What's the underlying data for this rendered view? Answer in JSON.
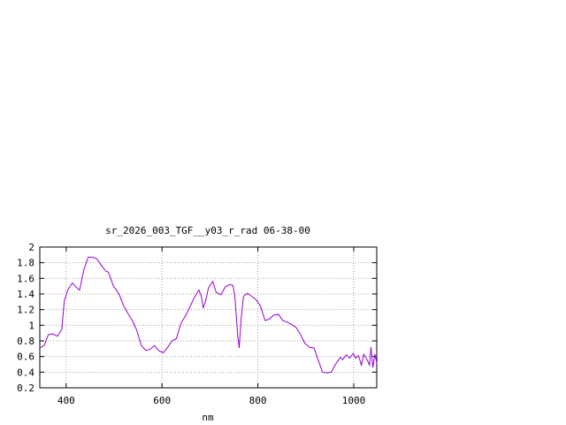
{
  "chart_data": {
    "type": "line",
    "title": "sr_2026_003_TGF__y03_r_rad 06-38-00",
    "x_label": "nm",
    "x": [
      345,
      354,
      363,
      372,
      382,
      391,
      396,
      404,
      413,
      422,
      428,
      437,
      446,
      455,
      464,
      474,
      483,
      488,
      498,
      511,
      520,
      529,
      538,
      547,
      557,
      566,
      575,
      584,
      594,
      603,
      612,
      621,
      630,
      640,
      649,
      658,
      667,
      677,
      682,
      686,
      691,
      697,
      706,
      713,
      723,
      732,
      741,
      748,
      752,
      758,
      761,
      765,
      770,
      778,
      787,
      796,
      805,
      815,
      824,
      833,
      843,
      852,
      861,
      870,
      880,
      889,
      898,
      907,
      917,
      925,
      935,
      944,
      953,
      962,
      972,
      977,
      984,
      992,
      999,
      1004,
      1010,
      1016,
      1021,
      1027,
      1033,
      1036,
      1040,
      1044,
      1048
    ],
    "series": [
      {
        "name": "sr_2026_003_TGF__y03_r_rad",
        "color": "#9400d3",
        "values": [
          0.71,
          0.74,
          0.88,
          0.89,
          0.86,
          0.95,
          1.31,
          1.46,
          1.54,
          1.48,
          1.45,
          1.71,
          1.87,
          1.87,
          1.85,
          1.76,
          1.69,
          1.68,
          1.51,
          1.39,
          1.25,
          1.15,
          1.06,
          0.94,
          0.74,
          0.68,
          0.69,
          0.74,
          0.67,
          0.65,
          0.72,
          0.8,
          0.83,
          1.03,
          1.12,
          1.23,
          1.35,
          1.45,
          1.37,
          1.22,
          1.31,
          1.48,
          1.56,
          1.42,
          1.39,
          1.49,
          1.52,
          1.51,
          1.37,
          0.86,
          0.71,
          1.08,
          1.37,
          1.41,
          1.37,
          1.33,
          1.25,
          1.06,
          1.08,
          1.13,
          1.14,
          1.06,
          1.04,
          1.01,
          0.97,
          0.88,
          0.77,
          0.72,
          0.71,
          0.57,
          0.4,
          0.39,
          0.4,
          0.5,
          0.59,
          0.56,
          0.62,
          0.58,
          0.64,
          0.58,
          0.61,
          0.49,
          0.63,
          0.57,
          0.49,
          0.72,
          0.46,
          0.63,
          0.52
        ]
      }
    ],
    "xlim": [
      345,
      1048
    ],
    "xticks": [
      400,
      600,
      800,
      1000
    ],
    "ylim": [
      0.2,
      2
    ],
    "yticks": [
      0.2,
      0.4,
      0.6,
      0.8,
      1,
      1.2,
      1.4,
      1.6,
      1.8,
      2
    ],
    "grid": true
  }
}
